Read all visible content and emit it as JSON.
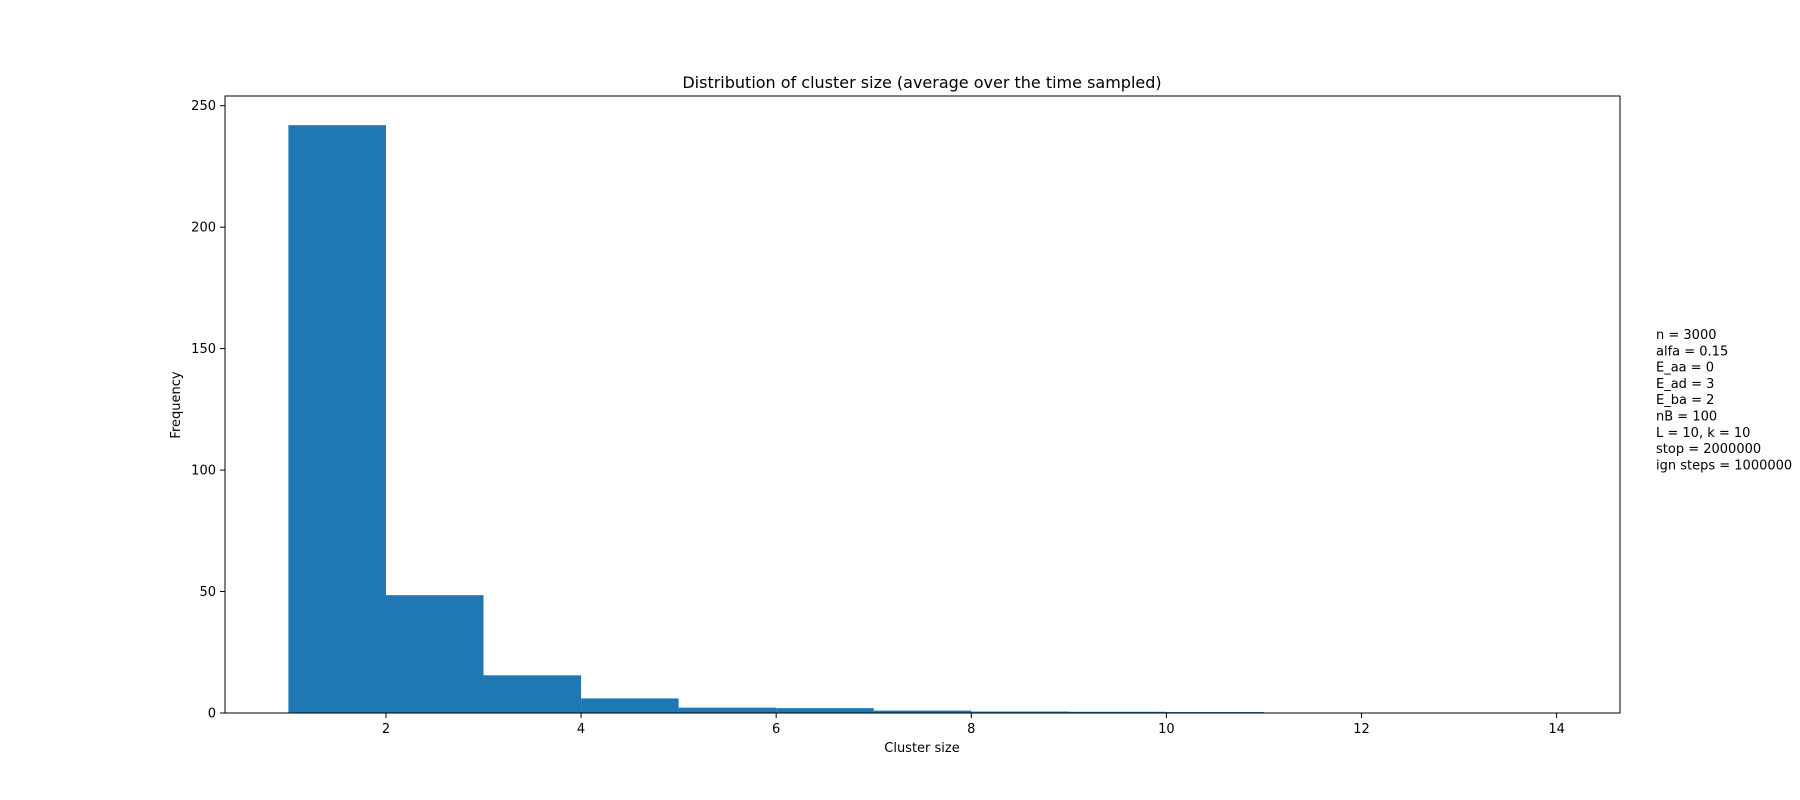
{
  "chart_data": {
    "type": "bar",
    "title": "Distribution of cluster size (average over the time sampled)",
    "xlabel": "Cluster size",
    "ylabel": "Frequency",
    "xlim": [
      0.35,
      14.65
    ],
    "ylim": [
      0,
      254
    ],
    "xticks": [
      2,
      4,
      6,
      8,
      10,
      12,
      14
    ],
    "yticks": [
      0,
      50,
      100,
      150,
      200,
      250
    ],
    "bar_color": "#1f77b4",
    "bins": [
      {
        "start": 1,
        "end": 2,
        "value": 242
      },
      {
        "start": 2,
        "end": 3,
        "value": 48.5
      },
      {
        "start": 3,
        "end": 4,
        "value": 15.5
      },
      {
        "start": 4,
        "end": 5,
        "value": 6
      },
      {
        "start": 5,
        "end": 6,
        "value": 2.2
      },
      {
        "start": 6,
        "end": 7,
        "value": 2
      },
      {
        "start": 7,
        "end": 8,
        "value": 1
      },
      {
        "start": 8,
        "end": 9,
        "value": 0.6
      },
      {
        "start": 9,
        "end": 10,
        "value": 0.5
      },
      {
        "start": 10,
        "end": 11,
        "value": 0.4
      },
      {
        "start": 11,
        "end": 12,
        "value": 0.1
      },
      {
        "start": 12,
        "end": 13,
        "value": 0.1
      },
      {
        "start": 13,
        "end": 14,
        "value": 0.05
      }
    ],
    "annotation_lines": [
      "n = 3000",
      "alfa = 0.15",
      "E_aa = 0",
      "E_ad = 3",
      "E_ba = 2",
      "nB = 100",
      "L = 10, k = 10",
      "stop = 2000000",
      "ign steps = 1000000"
    ]
  }
}
